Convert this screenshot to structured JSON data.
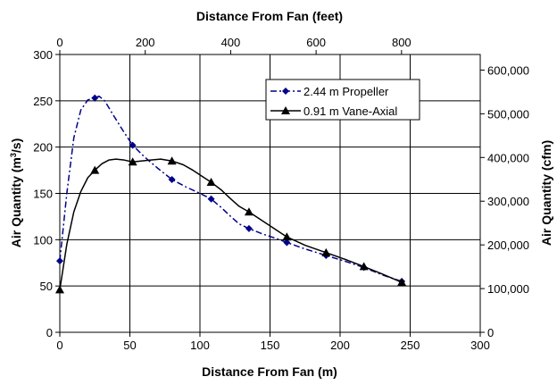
{
  "chart_data": {
    "type": "line",
    "x_axis_bottom": {
      "label": "Distance From Fan (m)",
      "min": 0,
      "max": 300,
      "ticks": [
        "0",
        "50",
        "100",
        "150",
        "200",
        "250",
        "300"
      ]
    },
    "x_axis_top": {
      "label": "Distance From Fan (feet)",
      "ticks": [
        "0",
        "200",
        "400",
        "600",
        "800"
      ]
    },
    "y_axis_left": {
      "label": "Air Quantity (m³/s)",
      "label_parts": [
        "Air Quantity (m",
        "3",
        "/s)"
      ],
      "min": 0,
      "max": 300,
      "ticks": [
        "0",
        "50",
        "100",
        "150",
        "200",
        "250",
        "300"
      ]
    },
    "y_axis_right": {
      "label": "Air Quantity (cfm)",
      "ticks": [
        "0",
        "100,000",
        "200,000",
        "300,000",
        "400,000",
        "500,000",
        "600,000"
      ]
    },
    "grid": true,
    "legend_position": "top-right",
    "series": [
      {
        "name": "2.44 m Propeller",
        "color": "#00008B",
        "marker": "diamond",
        "dash": "dash-dot",
        "x": [
          0,
          25,
          52,
          80,
          108,
          135,
          162,
          190,
          217,
          244
        ],
        "y": [
          77,
          253,
          202,
          165,
          144,
          112,
          97,
          83,
          70,
          55
        ],
        "curve": [
          [
            0,
            77
          ],
          [
            5,
            150
          ],
          [
            10,
            210
          ],
          [
            15,
            240
          ],
          [
            20,
            251
          ],
          [
            25,
            253
          ],
          [
            28,
            255
          ],
          [
            32,
            250
          ],
          [
            38,
            235
          ],
          [
            45,
            218
          ],
          [
            52,
            202
          ],
          [
            60,
            190
          ],
          [
            70,
            177
          ],
          [
            80,
            165
          ],
          [
            90,
            157
          ],
          [
            100,
            150
          ],
          [
            108,
            144
          ],
          [
            115,
            135
          ],
          [
            122,
            125
          ],
          [
            128,
            117
          ],
          [
            135,
            112
          ],
          [
            145,
            106
          ],
          [
            155,
            101
          ],
          [
            162,
            97
          ],
          [
            175,
            90
          ],
          [
            190,
            83
          ],
          [
            205,
            76
          ],
          [
            217,
            70
          ],
          [
            230,
            62
          ],
          [
            244,
            55
          ]
        ]
      },
      {
        "name": "0.91 m Vane-Axial",
        "color": "#000000",
        "marker": "triangle",
        "dash": "solid",
        "x": [
          0,
          25,
          52,
          80,
          108,
          135,
          162,
          190,
          217,
          244
        ],
        "y": [
          46,
          175,
          184,
          185,
          162,
          130,
          103,
          86,
          71,
          54
        ],
        "curve": [
          [
            0,
            46
          ],
          [
            5,
            95
          ],
          [
            10,
            130
          ],
          [
            15,
            152
          ],
          [
            20,
            167
          ],
          [
            25,
            175
          ],
          [
            30,
            182
          ],
          [
            35,
            186
          ],
          [
            40,
            187
          ],
          [
            46,
            186
          ],
          [
            52,
            184
          ],
          [
            58,
            185
          ],
          [
            65,
            186
          ],
          [
            72,
            187
          ],
          [
            80,
            185
          ],
          [
            88,
            181
          ],
          [
            95,
            175
          ],
          [
            102,
            168
          ],
          [
            108,
            162
          ],
          [
            115,
            154
          ],
          [
            122,
            144
          ],
          [
            128,
            136
          ],
          [
            135,
            130
          ],
          [
            145,
            120
          ],
          [
            155,
            110
          ],
          [
            162,
            103
          ],
          [
            175,
            94
          ],
          [
            190,
            86
          ],
          [
            205,
            78
          ],
          [
            217,
            71
          ],
          [
            230,
            63
          ],
          [
            244,
            54
          ]
        ]
      }
    ]
  }
}
